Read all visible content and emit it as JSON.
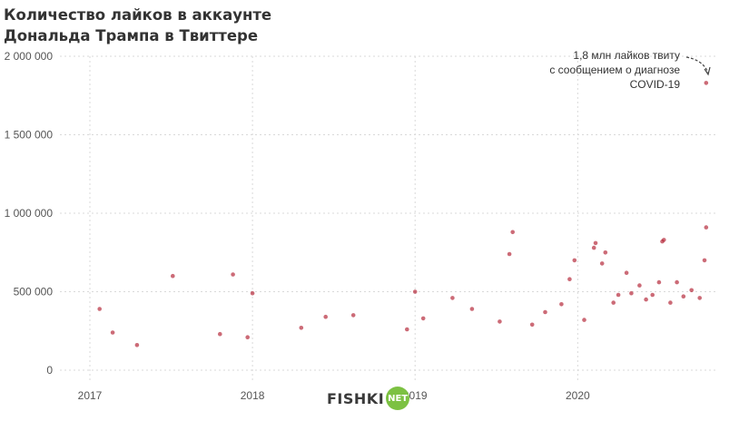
{
  "chart_data": {
    "type": "scatter",
    "title_lines": [
      "Количество лайков в аккаунте",
      "Дональда Трампа в Твиттере"
    ],
    "xlabel": "",
    "ylabel": "",
    "xlim": [
      2017.0,
      2020.83
    ],
    "ylim": [
      0,
      2000000
    ],
    "x_ticks": [
      {
        "value": 2017,
        "label": "2017"
      },
      {
        "value": 2018,
        "label": "2018"
      },
      {
        "value": 2019,
        "label": "2019"
      },
      {
        "value": 2020,
        "label": "2020"
      }
    ],
    "y_ticks": [
      {
        "value": 0,
        "label": "0"
      },
      {
        "value": 500000,
        "label": "500 000"
      },
      {
        "value": 1000000,
        "label": "1 000 000"
      },
      {
        "value": 1500000,
        "label": "1 500 000"
      },
      {
        "value": 2000000,
        "label": "2 000 000"
      }
    ],
    "grid": true,
    "point_color": "#b01c2e",
    "points": [
      [
        2017.06,
        390000
      ],
      [
        2017.14,
        240000
      ],
      [
        2017.29,
        160000
      ],
      [
        2017.51,
        600000
      ],
      [
        2017.8,
        230000
      ],
      [
        2017.88,
        610000
      ],
      [
        2017.97,
        210000
      ],
      [
        2018.0,
        490000
      ],
      [
        2018.3,
        270000
      ],
      [
        2018.45,
        340000
      ],
      [
        2018.62,
        350000
      ],
      [
        2018.95,
        260000
      ],
      [
        2019.0,
        500000
      ],
      [
        2019.05,
        330000
      ],
      [
        2019.23,
        460000
      ],
      [
        2019.35,
        390000
      ],
      [
        2019.52,
        310000
      ],
      [
        2019.6,
        880000
      ],
      [
        2019.58,
        740000
      ],
      [
        2019.72,
        290000
      ],
      [
        2019.8,
        370000
      ],
      [
        2019.9,
        420000
      ],
      [
        2019.95,
        580000
      ],
      [
        2019.98,
        700000
      ],
      [
        2020.04,
        320000
      ],
      [
        2020.1,
        780000
      ],
      [
        2020.11,
        810000
      ],
      [
        2020.15,
        680000
      ],
      [
        2020.17,
        750000
      ],
      [
        2020.22,
        430000
      ],
      [
        2020.25,
        480000
      ],
      [
        2020.3,
        620000
      ],
      [
        2020.33,
        490000
      ],
      [
        2020.38,
        540000
      ],
      [
        2020.42,
        450000
      ],
      [
        2020.46,
        480000
      ],
      [
        2020.5,
        560000
      ],
      [
        2020.52,
        820000
      ],
      [
        2020.53,
        830000
      ],
      [
        2020.57,
        430000
      ],
      [
        2020.61,
        560000
      ],
      [
        2020.65,
        470000
      ],
      [
        2020.7,
        510000
      ],
      [
        2020.75,
        460000
      ],
      [
        2020.78,
        700000
      ],
      [
        2020.79,
        910000
      ],
      [
        2020.79,
        1830000
      ]
    ],
    "annotation": {
      "lines": [
        "1,8 млн лайков твиту",
        "с сообщением о диагнозе",
        "COVID-19"
      ],
      "target": [
        2020.79,
        1830000
      ]
    }
  },
  "watermark": {
    "word": "FISHKI",
    "badge": "NET",
    "badge_color": "#7cc142"
  }
}
